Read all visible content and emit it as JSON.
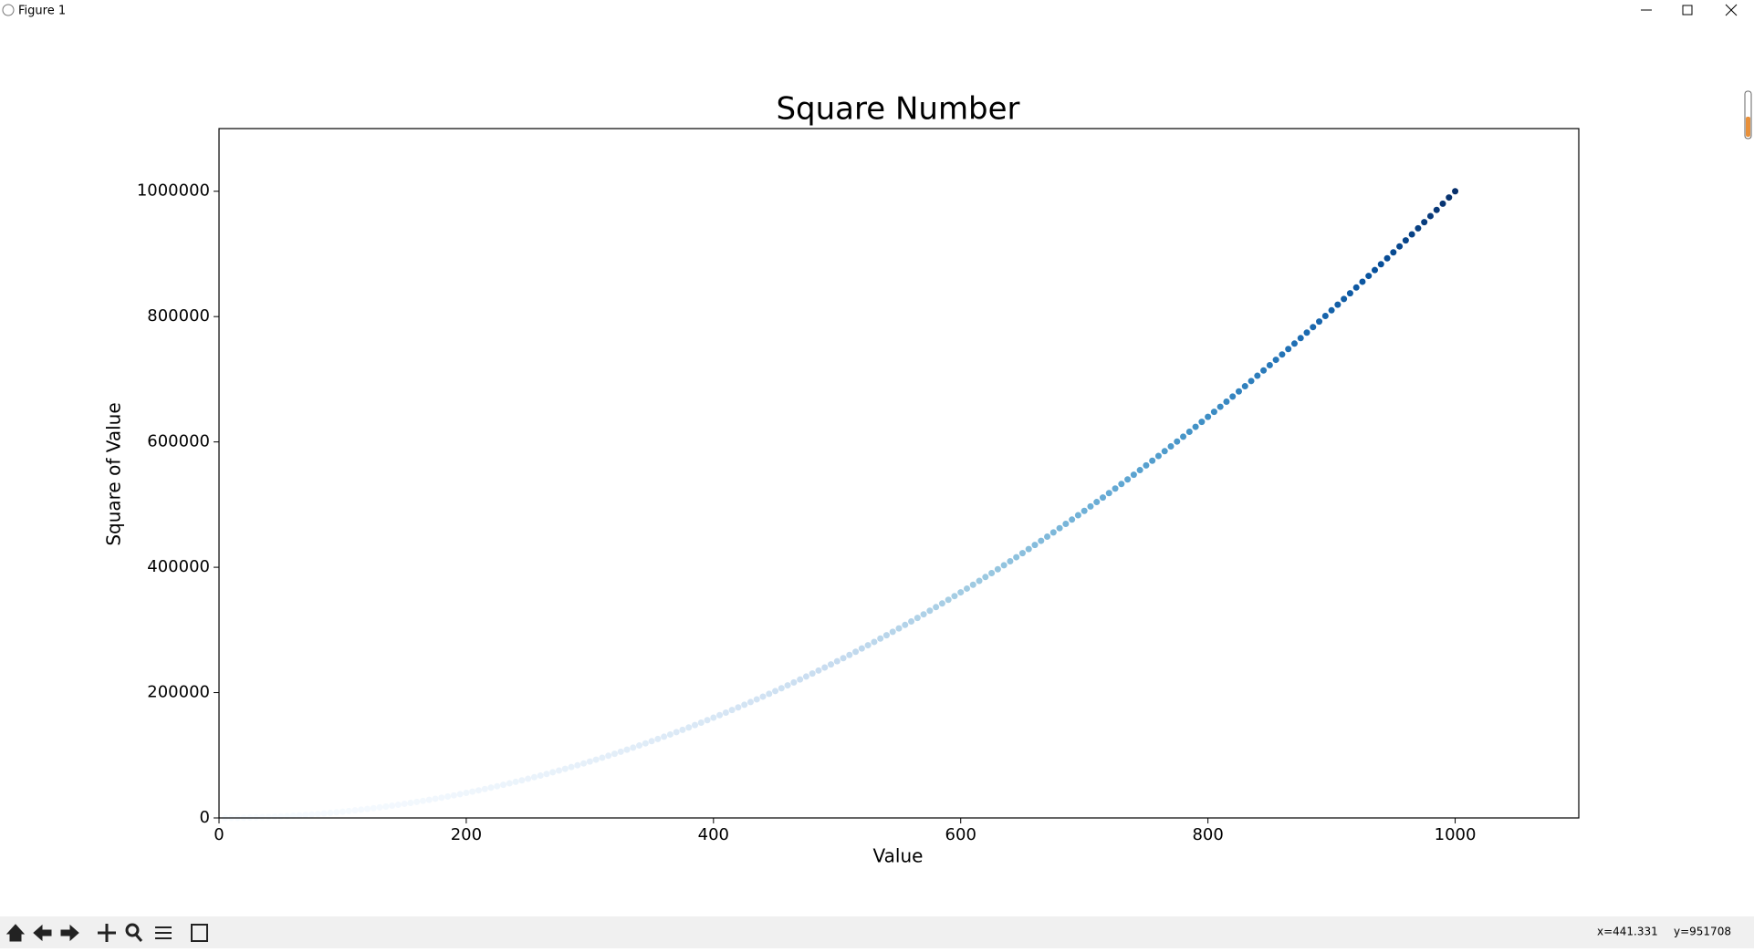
{
  "window": {
    "title": "Figure 1"
  },
  "status_bar": {
    "x": "x=441.331",
    "y": "y=951708"
  },
  "chart_data": {
    "type": "scatter",
    "title": "Square Number",
    "x_label": "Value",
    "y_label": "Square of Value",
    "xlim": [
      0,
      1100
    ],
    "ylim": [
      0,
      1100000
    ],
    "xticks": [
      0,
      200,
      400,
      600,
      800,
      1000
    ],
    "yticks": [
      0,
      200000,
      400000,
      600000,
      800000,
      1000000
    ],
    "colormap": [
      "#f7fbff",
      "#deebf7",
      "#c6dbef",
      "#9ecae1",
      "#6baed6",
      "#4292c6",
      "#2171b5",
      "#08519c",
      "#08306b"
    ],
    "x": [
      5,
      10,
      15,
      20,
      25,
      30,
      35,
      40,
      45,
      50,
      55,
      60,
      65,
      70,
      75,
      80,
      85,
      90,
      95,
      100,
      105,
      110,
      115,
      120,
      125,
      130,
      135,
      140,
      145,
      150,
      155,
      160,
      165,
      170,
      175,
      180,
      185,
      190,
      195,
      200,
      205,
      210,
      215,
      220,
      225,
      230,
      235,
      240,
      245,
      250,
      255,
      260,
      265,
      270,
      275,
      280,
      285,
      290,
      295,
      300,
      305,
      310,
      315,
      320,
      325,
      330,
      335,
      340,
      345,
      350,
      355,
      360,
      365,
      370,
      375,
      380,
      385,
      390,
      395,
      400,
      405,
      410,
      415,
      420,
      425,
      430,
      435,
      440,
      445,
      450,
      455,
      460,
      465,
      470,
      475,
      480,
      485,
      490,
      495,
      500,
      505,
      510,
      515,
      520,
      525,
      530,
      535,
      540,
      545,
      550,
      555,
      560,
      565,
      570,
      575,
      580,
      585,
      590,
      595,
      600,
      605,
      610,
      615,
      620,
      625,
      630,
      635,
      640,
      645,
      650,
      655,
      660,
      665,
      670,
      675,
      680,
      685,
      690,
      695,
      700,
      705,
      710,
      715,
      720,
      725,
      730,
      735,
      740,
      745,
      750,
      755,
      760,
      765,
      770,
      775,
      780,
      785,
      790,
      795,
      800,
      805,
      810,
      815,
      820,
      825,
      830,
      835,
      840,
      845,
      850,
      855,
      860,
      865,
      870,
      875,
      880,
      885,
      890,
      895,
      900,
      905,
      910,
      915,
      920,
      925,
      930,
      935,
      940,
      945,
      950,
      955,
      960,
      965,
      970,
      975,
      980,
      985,
      990,
      995,
      1000
    ],
    "values": [
      25,
      100,
      225,
      400,
      625,
      900,
      1225,
      1600,
      2025,
      2500,
      3025,
      3600,
      4225,
      4900,
      5625,
      6400,
      7225,
      8100,
      9025,
      10000,
      11025,
      12100,
      13225,
      14400,
      15625,
      16900,
      18225,
      19600,
      21025,
      22500,
      24025,
      25600,
      27225,
      28900,
      30625,
      32400,
      34225,
      36100,
      38025,
      40000,
      42025,
      44100,
      46225,
      48400,
      50625,
      52900,
      55225,
      57600,
      60025,
      62500,
      65025,
      67600,
      70225,
      72900,
      75625,
      78400,
      81225,
      84100,
      87025,
      90000,
      93025,
      96100,
      99225,
      102400,
      105625,
      108900,
      112225,
      115600,
      119025,
      122500,
      126025,
      129600,
      133225,
      136900,
      140625,
      144400,
      148225,
      152100,
      156025,
      160000,
      164025,
      168100,
      172225,
      176400,
      180625,
      184900,
      189225,
      193600,
      198025,
      202500,
      207025,
      211600,
      216225,
      220900,
      225625,
      230400,
      235225,
      240100,
      245025,
      250000,
      255025,
      260100,
      265225,
      270400,
      275625,
      280900,
      286225,
      291600,
      297025,
      302500,
      308025,
      313600,
      319225,
      324900,
      330625,
      336400,
      342225,
      348100,
      354025,
      360000,
      366025,
      372100,
      378225,
      384400,
      390625,
      396900,
      403225,
      409600,
      416025,
      422500,
      429025,
      435600,
      442225,
      448900,
      455625,
      462400,
      469225,
      476100,
      483025,
      490000,
      497025,
      504100,
      511225,
      518400,
      525625,
      532900,
      540225,
      547600,
      555025,
      562500,
      570025,
      577600,
      585225,
      592900,
      600625,
      608400,
      616225,
      624100,
      632025,
      640000,
      648025,
      656100,
      664225,
      672400,
      680625,
      688900,
      697225,
      705600,
      714025,
      722500,
      731025,
      739600,
      748225,
      756900,
      765625,
      774400,
      783225,
      792100,
      801025,
      810000,
      819025,
      828100,
      837225,
      846400,
      855625,
      864900,
      874225,
      883600,
      893025,
      902500,
      912025,
      921600,
      931225,
      940900,
      950625,
      960400,
      970225,
      980100,
      990025,
      1000000
    ]
  }
}
